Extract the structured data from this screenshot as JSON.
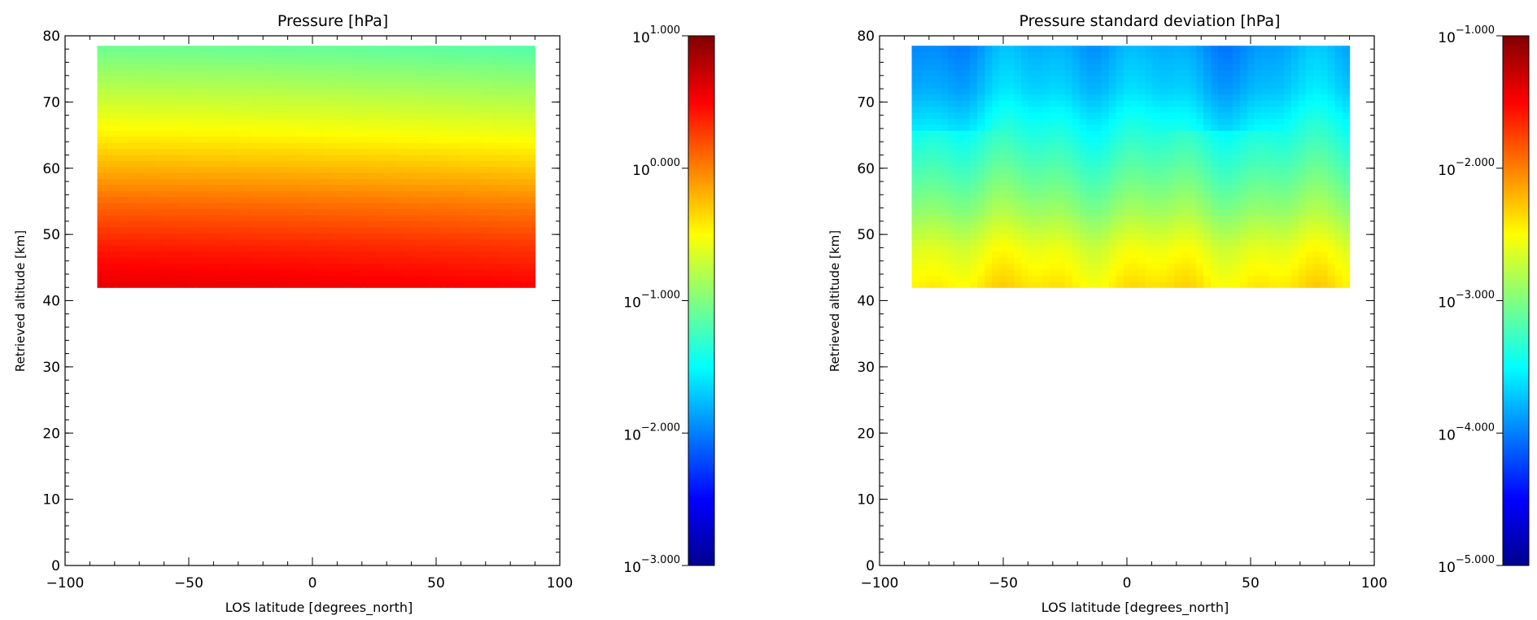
{
  "chart_data": [
    {
      "type": "heatmap",
      "title": "Pressure [hPa]",
      "xlabel": "LOS latitude [degrees_north]",
      "ylabel": "Retrieved altitude [km]",
      "xlim": [
        -100,
        100
      ],
      "ylim": [
        0,
        80
      ],
      "x_ticks": [
        "−100",
        "−50",
        "0",
        "50",
        "100"
      ],
      "x_tick_values": [
        -100,
        -50,
        0,
        50,
        100
      ],
      "y_ticks": [
        "0",
        "10",
        "20",
        "30",
        "40",
        "50",
        "60",
        "70",
        "80"
      ],
      "y_tick_values": [
        0,
        10,
        20,
        30,
        40,
        50,
        60,
        70,
        80
      ],
      "data_extent": {
        "lat": [
          -87,
          90
        ],
        "alt": [
          42,
          78.5
        ]
      },
      "colorbar": {
        "scale": "log10",
        "range": [
          -3,
          1
        ],
        "tick_values": [
          -3,
          -2,
          -1,
          0,
          1
        ],
        "tick_base": "10",
        "tick_exponents": [
          "−3.000",
          "−2.000",
          "−1.000",
          "0.000",
          "1.000"
        ]
      },
      "levels_at_lat": {
        "-87": 57.5,
        "0": 55.5,
        "40": 55,
        "90": 50.5
      },
      "field_log10": {
        "alt": [
          42,
          48,
          54,
          60,
          66,
          72,
          78.5
        ],
        "description_lat_minus90": [
          0.6,
          0.4,
          0.13,
          -0.19,
          -0.5,
          -0.78,
          -1.08
        ]
      }
    },
    {
      "type": "heatmap",
      "title": "Pressure standard deviation [hPa]",
      "xlabel": "LOS latitude [degrees_north]",
      "ylabel": "Retrieved altitude [km]",
      "xlim": [
        -100,
        100
      ],
      "ylim": [
        0,
        80
      ],
      "x_ticks": [
        "−100",
        "−50",
        "0",
        "50",
        "100"
      ],
      "x_tick_values": [
        -100,
        -50,
        0,
        50,
        100
      ],
      "y_ticks": [
        "0",
        "10",
        "20",
        "30",
        "40",
        "50",
        "60",
        "70",
        "80"
      ],
      "y_tick_values": [
        0,
        10,
        20,
        30,
        40,
        50,
        60,
        70,
        80
      ],
      "data_extent": {
        "lat": [
          -87,
          90
        ],
        "alt": [
          42,
          78.5
        ]
      },
      "colorbar": {
        "scale": "log10",
        "range": [
          -5,
          -1
        ],
        "tick_values": [
          -5,
          -4,
          -3,
          -2,
          -1
        ],
        "tick_base": "10",
        "tick_exponents": [
          "−5.000",
          "−4.000",
          "−3.000",
          "−2.000",
          "−1.000"
        ]
      },
      "field_log10": {
        "alt": [
          42,
          48,
          54,
          60,
          66,
          72,
          78.5
        ],
        "typical": [
          -2.4,
          -2.6,
          -2.92,
          -3.18,
          -3.42,
          -3.68,
          -3.82
        ]
      }
    }
  ]
}
